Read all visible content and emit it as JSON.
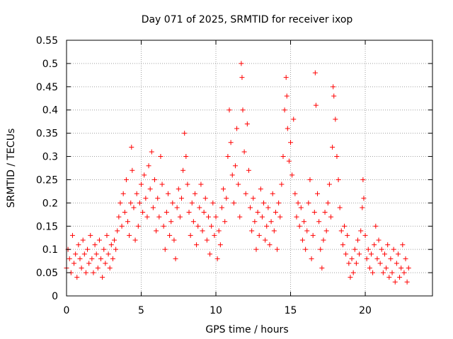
{
  "chart_data": {
    "type": "scatter",
    "title": "Day 071 of 2025, SRMTID for receiver ixop",
    "xlabel": "GPS time / hours",
    "ylabel": "SRMTID / TECUs",
    "xlim": [
      0,
      24.5
    ],
    "ylim": [
      0,
      0.55
    ],
    "x_ticks": [
      0,
      5,
      10,
      15,
      20
    ],
    "x_tick_labels": [
      "0",
      "5",
      "10",
      "15",
      "20"
    ],
    "y_ticks": [
      0,
      0.05,
      0.1,
      0.15,
      0.2,
      0.25,
      0.3,
      0.35,
      0.4,
      0.45,
      0.5,
      0.55
    ],
    "y_tick_labels": [
      "0",
      "0.05",
      "0.1",
      "0.15",
      "0.2",
      "0.25",
      "0.3",
      "0.35",
      "0.4",
      "0.45",
      "0.5",
      "0.55"
    ],
    "grid": true,
    "marker": "+",
    "colors": {
      "points": "#ff0000",
      "grid": "#a0a0a0",
      "axes": "#000000"
    },
    "series": [
      {
        "name": "SRMTID",
        "points": [
          [
            0.0,
            0.06
          ],
          [
            0.1,
            0.1
          ],
          [
            0.2,
            0.08
          ],
          [
            0.3,
            0.05
          ],
          [
            0.4,
            0.13
          ],
          [
            0.5,
            0.07
          ],
          [
            0.6,
            0.09
          ],
          [
            0.7,
            0.04
          ],
          [
            0.8,
            0.11
          ],
          [
            0.9,
            0.08
          ],
          [
            1.0,
            0.06
          ],
          [
            1.1,
            0.12
          ],
          [
            1.2,
            0.09
          ],
          [
            1.3,
            0.05
          ],
          [
            1.4,
            0.1
          ],
          [
            1.5,
            0.07
          ],
          [
            1.6,
            0.13
          ],
          [
            1.7,
            0.08
          ],
          [
            1.8,
            0.05
          ],
          [
            1.9,
            0.11
          ],
          [
            2.0,
            0.09
          ],
          [
            2.1,
            0.06
          ],
          [
            2.2,
            0.12
          ],
          [
            2.3,
            0.08
          ],
          [
            2.4,
            0.04
          ],
          [
            2.5,
            0.1
          ],
          [
            2.6,
            0.07
          ],
          [
            2.7,
            0.13
          ],
          [
            2.8,
            0.09
          ],
          [
            2.9,
            0.06
          ],
          [
            3.0,
            0.11
          ],
          [
            3.1,
            0.08
          ],
          [
            3.2,
            0.12
          ],
          [
            3.3,
            0.1
          ],
          [
            3.4,
            0.14
          ],
          [
            3.5,
            0.17
          ],
          [
            3.6,
            0.2
          ],
          [
            3.7,
            0.15
          ],
          [
            3.8,
            0.22
          ],
          [
            3.9,
            0.18
          ],
          [
            4.0,
            0.25
          ],
          [
            4.1,
            0.16
          ],
          [
            4.2,
            0.13
          ],
          [
            4.3,
            0.2
          ],
          [
            4.35,
            0.32
          ],
          [
            4.4,
            0.27
          ],
          [
            4.5,
            0.19
          ],
          [
            4.6,
            0.12
          ],
          [
            4.7,
            0.22
          ],
          [
            4.8,
            0.15
          ],
          [
            4.9,
            0.2
          ],
          [
            5.0,
            0.24
          ],
          [
            5.1,
            0.18
          ],
          [
            5.2,
            0.26
          ],
          [
            5.3,
            0.21
          ],
          [
            5.4,
            0.17
          ],
          [
            5.5,
            0.28
          ],
          [
            5.6,
            0.23
          ],
          [
            5.7,
            0.31
          ],
          [
            5.8,
            0.19
          ],
          [
            5.9,
            0.25
          ],
          [
            6.0,
            0.14
          ],
          [
            6.1,
            0.21
          ],
          [
            6.2,
            0.17
          ],
          [
            6.3,
            0.3
          ],
          [
            6.4,
            0.24
          ],
          [
            6.5,
            0.15
          ],
          [
            6.6,
            0.1
          ],
          [
            6.7,
            0.18
          ],
          [
            6.8,
            0.22
          ],
          [
            6.9,
            0.13
          ],
          [
            7.0,
            0.16
          ],
          [
            7.1,
            0.2
          ],
          [
            7.2,
            0.12
          ],
          [
            7.3,
            0.08
          ],
          [
            7.4,
            0.19
          ],
          [
            7.5,
            0.23
          ],
          [
            7.6,
            0.17
          ],
          [
            7.7,
            0.21
          ],
          [
            7.8,
            0.27
          ],
          [
            7.9,
            0.35
          ],
          [
            8.0,
            0.3
          ],
          [
            8.1,
            0.24
          ],
          [
            8.2,
            0.18
          ],
          [
            8.3,
            0.13
          ],
          [
            8.4,
            0.2
          ],
          [
            8.5,
            0.16
          ],
          [
            8.6,
            0.22
          ],
          [
            8.7,
            0.11
          ],
          [
            8.8,
            0.15
          ],
          [
            8.9,
            0.19
          ],
          [
            9.0,
            0.24
          ],
          [
            9.1,
            0.14
          ],
          [
            9.2,
            0.18
          ],
          [
            9.3,
            0.21
          ],
          [
            9.4,
            0.12
          ],
          [
            9.5,
            0.17
          ],
          [
            9.6,
            0.09
          ],
          [
            9.7,
            0.15
          ],
          [
            9.8,
            0.2
          ],
          [
            9.9,
            0.13
          ],
          [
            10.0,
            0.17
          ],
          [
            10.1,
            0.08
          ],
          [
            10.2,
            0.14
          ],
          [
            10.3,
            0.11
          ],
          [
            10.4,
            0.19
          ],
          [
            10.5,
            0.23
          ],
          [
            10.6,
            0.16
          ],
          [
            10.7,
            0.21
          ],
          [
            10.8,
            0.3
          ],
          [
            10.9,
            0.4
          ],
          [
            11.0,
            0.33
          ],
          [
            11.1,
            0.26
          ],
          [
            11.2,
            0.2
          ],
          [
            11.3,
            0.28
          ],
          [
            11.4,
            0.36
          ],
          [
            11.5,
            0.24
          ],
          [
            11.6,
            0.17
          ],
          [
            11.7,
            0.5
          ],
          [
            11.75,
            0.47
          ],
          [
            11.8,
            0.4
          ],
          [
            11.9,
            0.31
          ],
          [
            12.0,
            0.22
          ],
          [
            12.1,
            0.37
          ],
          [
            12.2,
            0.27
          ],
          [
            12.3,
            0.19
          ],
          [
            12.4,
            0.14
          ],
          [
            12.5,
            0.21
          ],
          [
            12.6,
            0.16
          ],
          [
            12.7,
            0.1
          ],
          [
            12.8,
            0.18
          ],
          [
            12.9,
            0.13
          ],
          [
            13.0,
            0.23
          ],
          [
            13.1,
            0.17
          ],
          [
            13.2,
            0.2
          ],
          [
            13.3,
            0.12
          ],
          [
            13.4,
            0.15
          ],
          [
            13.5,
            0.19
          ],
          [
            13.6,
            0.11
          ],
          [
            13.7,
            0.16
          ],
          [
            13.8,
            0.22
          ],
          [
            13.9,
            0.14
          ],
          [
            14.0,
            0.18
          ],
          [
            14.1,
            0.1
          ],
          [
            14.2,
            0.2
          ],
          [
            14.3,
            0.17
          ],
          [
            14.4,
            0.24
          ],
          [
            14.5,
            0.3
          ],
          [
            14.6,
            0.4
          ],
          [
            14.7,
            0.47
          ],
          [
            14.75,
            0.43
          ],
          [
            14.8,
            0.36
          ],
          [
            14.9,
            0.29
          ],
          [
            15.0,
            0.33
          ],
          [
            15.1,
            0.26
          ],
          [
            15.2,
            0.38
          ],
          [
            15.3,
            0.22
          ],
          [
            15.4,
            0.17
          ],
          [
            15.5,
            0.2
          ],
          [
            15.6,
            0.15
          ],
          [
            15.7,
            0.19
          ],
          [
            15.8,
            0.12
          ],
          [
            15.9,
            0.16
          ],
          [
            16.0,
            0.1
          ],
          [
            16.1,
            0.14
          ],
          [
            16.2,
            0.2
          ],
          [
            16.3,
            0.25
          ],
          [
            16.4,
            0.08
          ],
          [
            16.5,
            0.13
          ],
          [
            16.6,
            0.18
          ],
          [
            16.65,
            0.48
          ],
          [
            16.7,
            0.41
          ],
          [
            16.8,
            0.22
          ],
          [
            16.9,
            0.16
          ],
          [
            17.0,
            0.1
          ],
          [
            17.1,
            0.06
          ],
          [
            17.2,
            0.12
          ],
          [
            17.3,
            0.18
          ],
          [
            17.4,
            0.14
          ],
          [
            17.5,
            0.2
          ],
          [
            17.6,
            0.24
          ],
          [
            17.7,
            0.17
          ],
          [
            17.8,
            0.32
          ],
          [
            17.85,
            0.45
          ],
          [
            17.9,
            0.43
          ],
          [
            18.0,
            0.38
          ],
          [
            18.1,
            0.3
          ],
          [
            18.2,
            0.25
          ],
          [
            18.3,
            0.19
          ],
          [
            18.4,
            0.14
          ],
          [
            18.5,
            0.11
          ],
          [
            18.6,
            0.15
          ],
          [
            18.7,
            0.09
          ],
          [
            18.8,
            0.13
          ],
          [
            18.9,
            0.07
          ],
          [
            19.0,
            0.04
          ],
          [
            19.1,
            0.08
          ],
          [
            19.2,
            0.05
          ],
          [
            19.3,
            0.1
          ],
          [
            19.4,
            0.07
          ],
          [
            19.5,
            0.12
          ],
          [
            19.6,
            0.09
          ],
          [
            19.7,
            0.14
          ],
          [
            19.8,
            0.19
          ],
          [
            19.85,
            0.25
          ],
          [
            19.9,
            0.21
          ],
          [
            20.0,
            0.13
          ],
          [
            20.1,
            0.08
          ],
          [
            20.2,
            0.1
          ],
          [
            20.3,
            0.06
          ],
          [
            20.4,
            0.09
          ],
          [
            20.5,
            0.05
          ],
          [
            20.6,
            0.11
          ],
          [
            20.7,
            0.15
          ],
          [
            20.8,
            0.08
          ],
          [
            20.9,
            0.12
          ],
          [
            21.0,
            0.07
          ],
          [
            21.1,
            0.1
          ],
          [
            21.2,
            0.05
          ],
          [
            21.3,
            0.09
          ],
          [
            21.4,
            0.06
          ],
          [
            21.5,
            0.11
          ],
          [
            21.6,
            0.04
          ],
          [
            21.7,
            0.08
          ],
          [
            21.8,
            0.05
          ],
          [
            21.9,
            0.1
          ],
          [
            22.0,
            0.03
          ],
          [
            22.1,
            0.07
          ],
          [
            22.2,
            0.09
          ],
          [
            22.3,
            0.04
          ],
          [
            22.4,
            0.06
          ],
          [
            22.5,
            0.11
          ],
          [
            22.6,
            0.05
          ],
          [
            22.7,
            0.08
          ],
          [
            22.8,
            0.03
          ],
          [
            22.9,
            0.06
          ]
        ]
      }
    ]
  }
}
